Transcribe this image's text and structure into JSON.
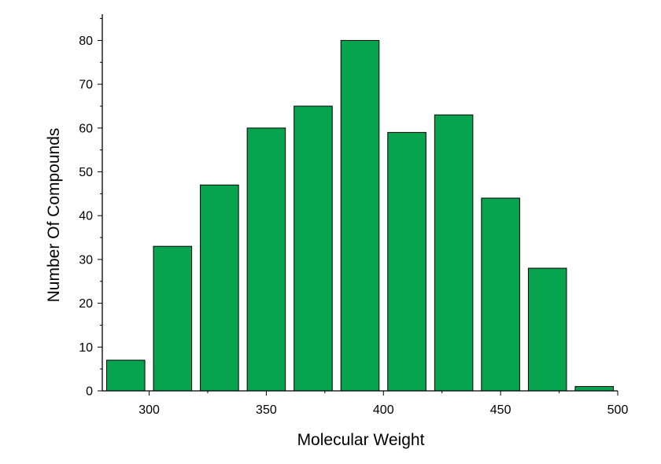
{
  "chart_data": {
    "type": "bar",
    "title": "",
    "xlabel": "Molecular Weight",
    "ylabel": "Number Of Compounds",
    "bin_width": 20,
    "bin_centers": [
      290,
      310,
      330,
      350,
      370,
      390,
      410,
      430,
      450,
      470,
      490
    ],
    "values": [
      7,
      33,
      47,
      60,
      65,
      80,
      59,
      63,
      44,
      28,
      1
    ],
    "xlim": [
      280,
      500
    ],
    "ylim": [
      0,
      86
    ],
    "xticks": [
      300,
      350,
      400,
      450,
      500
    ],
    "yticks": [
      0,
      10,
      20,
      30,
      40,
      50,
      60,
      70,
      80
    ],
    "bar_color": "#07a34f",
    "grid": false
  }
}
